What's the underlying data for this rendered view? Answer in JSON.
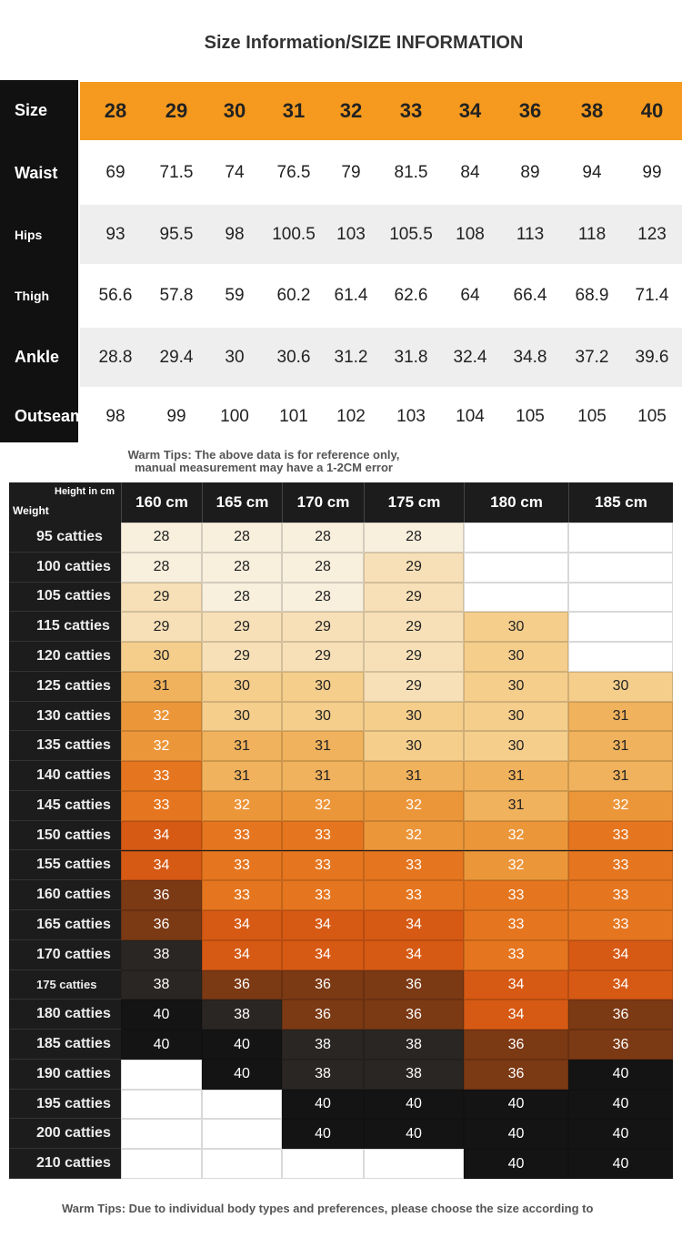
{
  "title": "Size Information/SIZE INFORMATION",
  "size_table": {
    "header": {
      "label": "Size",
      "values": [
        "28",
        "29",
        "30",
        "31",
        "32",
        "33",
        "34",
        "36",
        "38",
        "40"
      ]
    },
    "rows": [
      {
        "label": "Waist",
        "values": [
          "69",
          "71.5",
          "74",
          "76.5",
          "79",
          "81.5",
          "84",
          "89",
          "94",
          "99"
        ]
      },
      {
        "label": "Hips",
        "values": [
          "93",
          "95.5",
          "98",
          "100.5",
          "103",
          "105.5",
          "108",
          "113",
          "118",
          "123"
        ]
      },
      {
        "label": "Thigh",
        "values": [
          "56.6",
          "57.8",
          "59",
          "60.2",
          "61.4",
          "62.6",
          "64",
          "66.4",
          "68.9",
          "71.4"
        ]
      },
      {
        "label": "Ankle",
        "values": [
          "28.8",
          "29.4",
          "30",
          "30.6",
          "31.2",
          "31.8",
          "32.4",
          "34.8",
          "37.2",
          "39.6"
        ]
      },
      {
        "label": "Outseam",
        "values": [
          "98",
          "99",
          "100",
          "101",
          "102",
          "103",
          "104",
          "105",
          "105",
          "105"
        ]
      }
    ]
  },
  "tip_1": [
    "Warm Tips: The above data is for reference only,",
    "manual measurement may have a 1-2CM error"
  ],
  "size_chart": {
    "corner_top": "Height in cm",
    "corner_bottom": "Weight",
    "heights": [
      "160 cm",
      "165 cm",
      "170 cm",
      "175 cm",
      "180 cm",
      "185 cm"
    ],
    "rows": [
      {
        "weight": "95 catties",
        "sizes": [
          28,
          28,
          28,
          28,
          null,
          null
        ]
      },
      {
        "weight": "100 catties",
        "sizes": [
          28,
          28,
          28,
          29,
          null,
          null
        ]
      },
      {
        "weight": "105 catties",
        "sizes": [
          29,
          28,
          28,
          29,
          null,
          null
        ]
      },
      {
        "weight": "115 catties",
        "sizes": [
          29,
          29,
          29,
          29,
          30,
          null
        ]
      },
      {
        "weight": "120 catties",
        "sizes": [
          30,
          29,
          29,
          29,
          30,
          null
        ]
      },
      {
        "weight": "125 catties",
        "sizes": [
          31,
          30,
          30,
          29,
          30,
          30
        ]
      },
      {
        "weight": "130 catties",
        "sizes": [
          32,
          30,
          30,
          30,
          30,
          31
        ]
      },
      {
        "weight": "135 catties",
        "sizes": [
          32,
          31,
          31,
          30,
          30,
          31
        ]
      },
      {
        "weight": "140 catties",
        "sizes": [
          33,
          31,
          31,
          31,
          31,
          31
        ]
      },
      {
        "weight": "145 catties",
        "sizes": [
          33,
          32,
          32,
          32,
          31,
          32
        ]
      },
      {
        "weight": "150 catties",
        "sizes": [
          34,
          33,
          33,
          32,
          32,
          33
        ]
      },
      {
        "weight": "155 catties",
        "sizes": [
          34,
          33,
          33,
          33,
          32,
          33
        ]
      },
      {
        "weight": "160 catties",
        "sizes": [
          36,
          33,
          33,
          33,
          33,
          33
        ]
      },
      {
        "weight": "165 catties",
        "sizes": [
          36,
          34,
          34,
          34,
          33,
          33
        ]
      },
      {
        "weight": "170 catties",
        "sizes": [
          38,
          34,
          34,
          34,
          33,
          34
        ]
      },
      {
        "weight": "175 catties",
        "sizes": [
          38,
          36,
          36,
          36,
          34,
          34
        ]
      },
      {
        "weight": "180 catties",
        "sizes": [
          40,
          38,
          36,
          36,
          34,
          36
        ]
      },
      {
        "weight": "185 catties",
        "sizes": [
          40,
          40,
          38,
          38,
          36,
          36
        ]
      },
      {
        "weight": "190 catties",
        "sizes": [
          null,
          40,
          38,
          38,
          36,
          40
        ]
      },
      {
        "weight": "195 catties",
        "sizes": [
          null,
          null,
          40,
          40,
          40,
          40
        ]
      },
      {
        "weight": "200 catties",
        "sizes": [
          null,
          null,
          40,
          40,
          40,
          40
        ]
      },
      {
        "weight": "210 catties",
        "sizes": [
          null,
          null,
          null,
          null,
          40,
          40
        ]
      }
    ]
  },
  "tip_2": "Warm Tips: Due to individual body types and preferences, please choose the size according to"
}
